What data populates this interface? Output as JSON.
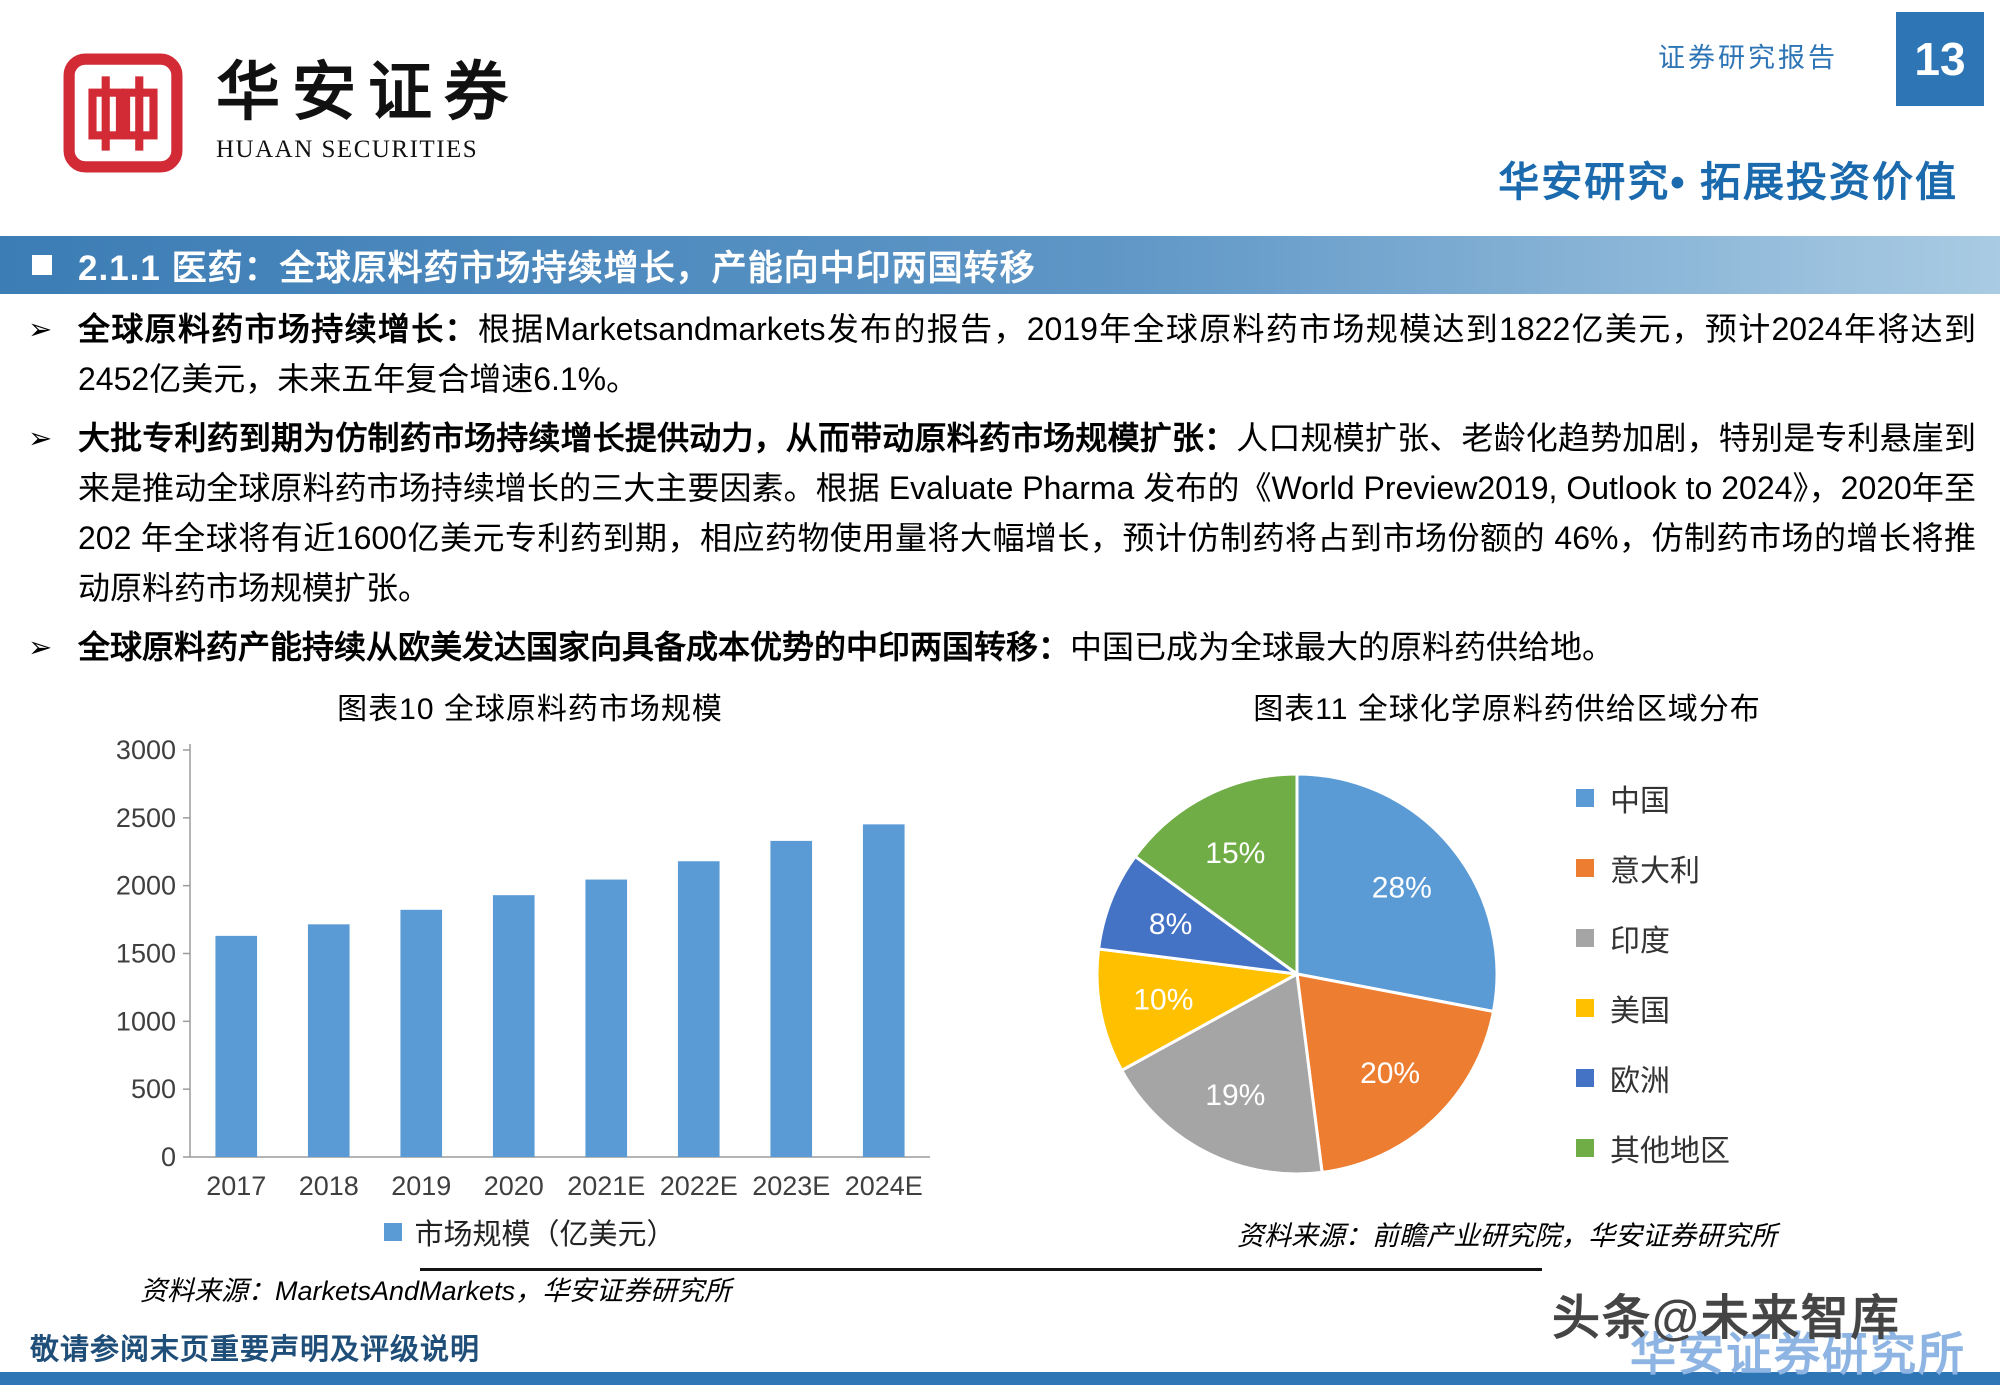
{
  "brand": {
    "name_cn": "华安证券",
    "name_en": "HUAAN SECURITIES",
    "logo_red": "#D22B36"
  },
  "header": {
    "report_type": "证券研究报告",
    "page_number": "13",
    "slogan": "华安研究•  拓展投资价值"
  },
  "section": {
    "title": "2.1.1 医药：全球原料药市场持续增长，产能向中印两国转移"
  },
  "bullets": [
    {
      "lead": "全球原料药市场持续增长：",
      "body": "根据Marketsandmarkets发布的报告，2019年全球原料药市场规模达到1822亿美元，预计2024年将达到2452亿美元，未来五年复合增速6.1%。"
    },
    {
      "lead": "大批专利药到期为仿制药市场持续增长提供动力，从而带动原料药市场规模扩张：",
      "body": "人口规模扩张、老龄化趋势加剧，特别是专利悬崖到来是推动全球原料药市场持续增长的三大主要因素。根据 Evaluate Pharma 发布的《World Preview2019, Outlook to 2024》，2020年至202 年全球将有近1600亿美元专利药到期，相应药物使用量将大幅增长，预计仿制药将占到市场份额的 46%，仿制药市场的增长将推动原料药市场规模扩张。"
    },
    {
      "lead": "全球原料药产能持续从欧美发达国家向具备成本优势的中印两国转移：",
      "body": "中国已成为全球最大的原料药供给地。"
    }
  ],
  "chart_data": [
    {
      "type": "bar",
      "title": "图表10  全球原料药市场规模",
      "categories": [
        "2017",
        "2018",
        "2019",
        "2020",
        "2021E",
        "2022E",
        "2023E",
        "2024E"
      ],
      "values": [
        1630,
        1715,
        1822,
        1930,
        2045,
        2180,
        2330,
        2452
      ],
      "ylim": [
        0,
        3000
      ],
      "ytick_step": 500,
      "bar_color": "#5B9BD5",
      "legend": "市场规模（亿美元）",
      "source": "资料来源：MarketsAndMarkets，华安证券研究所",
      "xlabel": "",
      "ylabel": ""
    },
    {
      "type": "pie",
      "title": "图表11  全球化学原料药供给区域分布",
      "labels": [
        "中国",
        "意大利",
        "印度",
        "美国",
        "欧洲",
        "其他地区"
      ],
      "values": [
        28,
        20,
        19,
        10,
        8,
        15
      ],
      "colors": [
        "#5B9BD5",
        "#ED7D31",
        "#A5A5A5",
        "#FFC000",
        "#4472C4",
        "#70AD47"
      ],
      "legend_position": "right",
      "source": "资料来源：前瞻产业研究院，华安证券研究所"
    }
  ],
  "footer": {
    "note": "敬请参阅末页重要声明及评级说明",
    "watermark_gray": "头条@未来智库",
    "watermark_blue": "华安证券研究所"
  }
}
